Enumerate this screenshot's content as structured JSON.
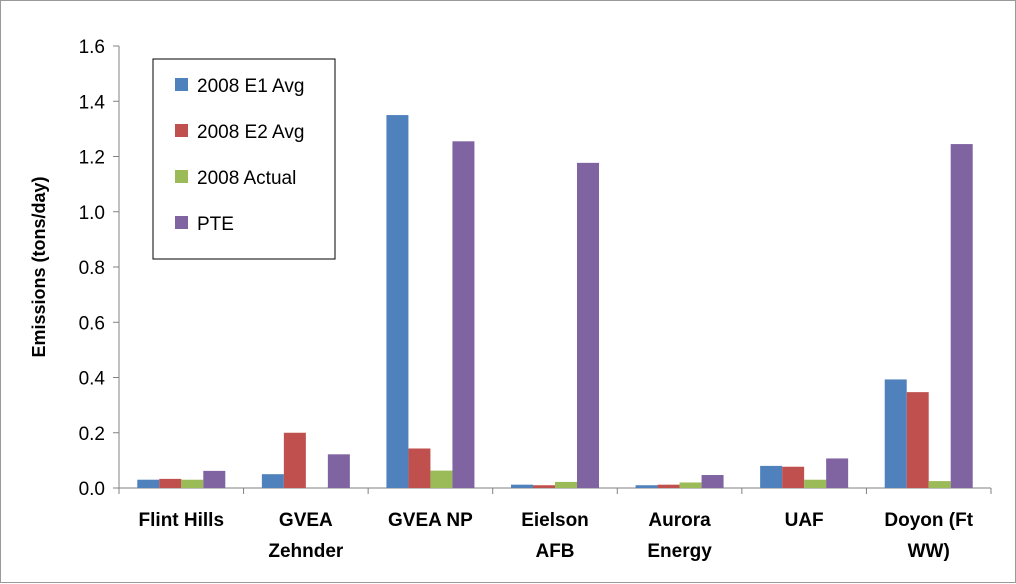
{
  "chart_data": {
    "type": "bar",
    "ylabel": "Emissions (tons/day)",
    "xlabel": "",
    "ylim": [
      0,
      1.6
    ],
    "yticks": [
      "0.0",
      "0.2",
      "0.4",
      "0.6",
      "0.8",
      "1.0",
      "1.2",
      "1.4",
      "1.6"
    ],
    "grid": false,
    "legend_position": "top-left",
    "categories": [
      [
        "Flint Hills"
      ],
      [
        "GVEA",
        "Zehnder"
      ],
      [
        "GVEA NP"
      ],
      [
        "Eielson",
        "AFB"
      ],
      [
        "Aurora",
        "Energy"
      ],
      [
        "UAF"
      ],
      [
        "Doyon (Ft",
        "WW)"
      ]
    ],
    "series": [
      {
        "name": "2008 E1 Avg",
        "color": "#4f81bd",
        "values": [
          0.03,
          0.05,
          1.35,
          0.012,
          0.01,
          0.08,
          0.393
        ]
      },
      {
        "name": "2008 E2 Avg",
        "color": "#c0504d",
        "values": [
          0.033,
          0.2,
          0.143,
          0.01,
          0.012,
          0.077,
          0.347
        ]
      },
      {
        "name": "2008 Actual",
        "color": "#9bbb59",
        "values": [
          0.03,
          0.0,
          0.063,
          0.022,
          0.02,
          0.03,
          0.025
        ]
      },
      {
        "name": "PTE",
        "color": "#8064a2",
        "values": [
          0.062,
          0.122,
          1.255,
          1.177,
          0.047,
          0.107,
          1.245
        ]
      }
    ]
  }
}
